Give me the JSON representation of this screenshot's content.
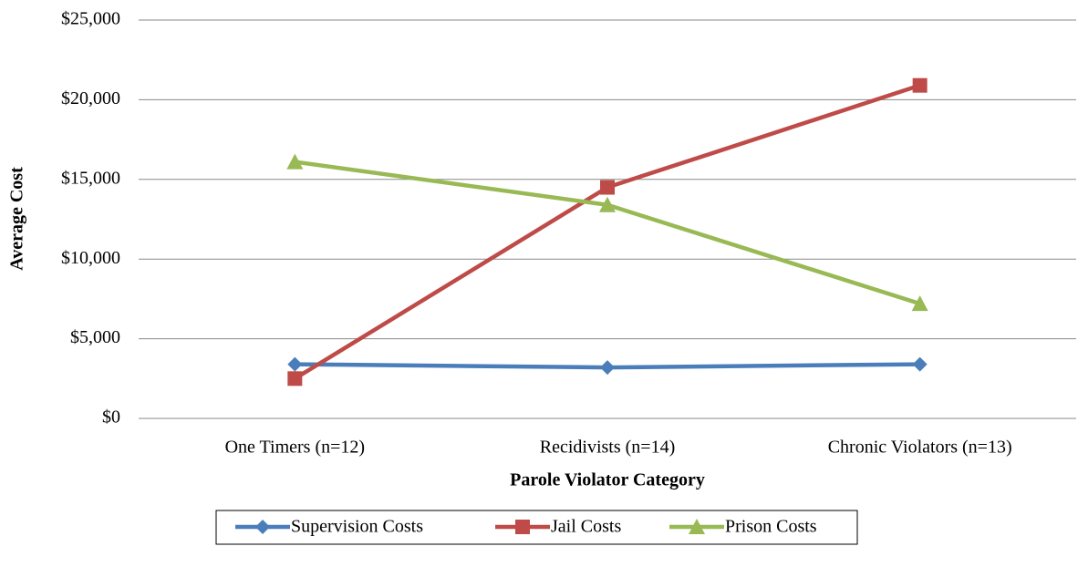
{
  "chart_data": {
    "type": "line",
    "x_label": "Parole Violator Category",
    "y_label": "Average Cost",
    "categories": [
      "One Timers (n=12)",
      "Recidivists (n=14)",
      "Chronic Violators (n=13)"
    ],
    "series": [
      {
        "name": "Supervision Costs",
        "color": "#4a7ebb",
        "marker": "diamond",
        "values": [
          3400,
          3200,
          3400
        ]
      },
      {
        "name": "Jail Costs",
        "color": "#be4b48",
        "marker": "square",
        "values": [
          2500,
          14500,
          20900
        ]
      },
      {
        "name": "Prison Costs",
        "color": "#98b954",
        "marker": "triangle",
        "values": [
          16100,
          13400,
          7200
        ]
      }
    ],
    "ylim": [
      0,
      25000
    ],
    "yticks": [
      {
        "value": 0,
        "label": "$0"
      },
      {
        "value": 5000,
        "label": "$5,000"
      },
      {
        "value": 10000,
        "label": "$10,000"
      },
      {
        "value": 15000,
        "label": "$15,000"
      },
      {
        "value": 20000,
        "label": "$20,000"
      },
      {
        "value": 25000,
        "label": "$25,000"
      }
    ],
    "grid": true,
    "legend": "bottom"
  }
}
